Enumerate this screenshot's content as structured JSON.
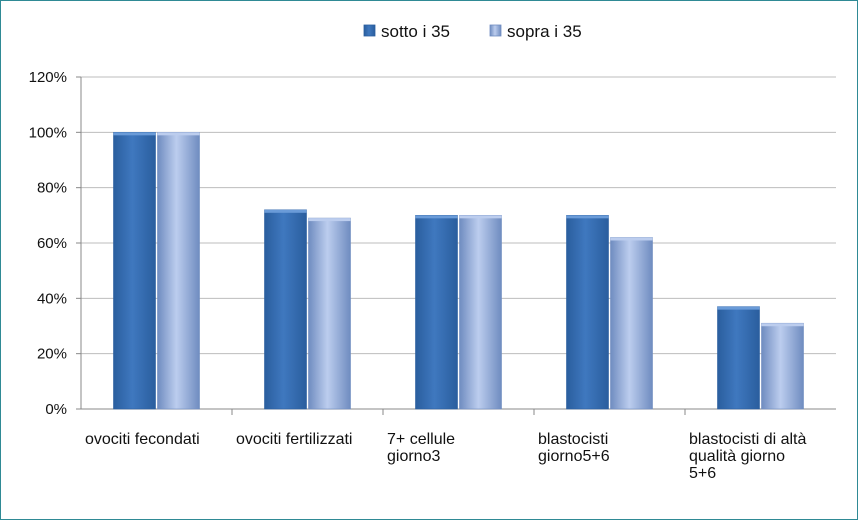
{
  "chart_data": {
    "type": "bar",
    "categories": [
      [
        "ovociti fecondati"
      ],
      [
        "ovociti fertilizzati"
      ],
      [
        "7+ cellule",
        "giorno3"
      ],
      [
        "blastocisti",
        "giorno5+6"
      ],
      [
        "blastocisti di altà",
        "qualità giorno",
        "5+6"
      ]
    ],
    "series": [
      {
        "name": "sotto i 35",
        "values": [
          100,
          72,
          70,
          70,
          37
        ]
      },
      {
        "name": "sopra i 35",
        "values": [
          100,
          69,
          70,
          62,
          31
        ]
      }
    ],
    "ylim": [
      0,
      120
    ],
    "yticks": [
      "0%",
      "20%",
      "40%",
      "60%",
      "80%",
      "100%",
      "120%"
    ],
    "grid": true,
    "legend_position": "top",
    "colors": {
      "series1_dark": "#2a5e9e",
      "series1_mid": "#3f78bf",
      "series1_light": "#6a9bd8",
      "series2_dark": "#6f8cc0",
      "series2_mid": "#95ade0",
      "series2_light": "#bccdee",
      "gridline": "#bdbdbd",
      "frame": "#2f8a95"
    }
  }
}
